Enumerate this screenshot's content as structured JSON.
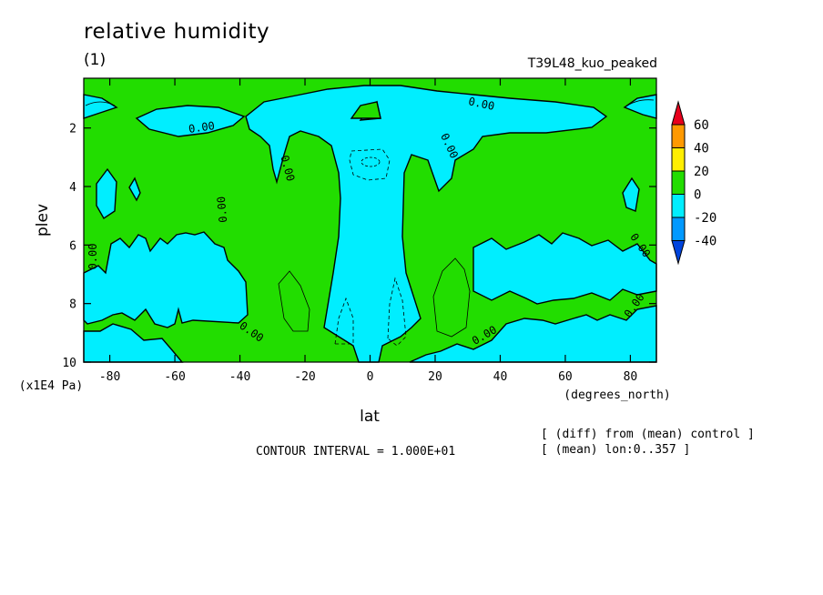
{
  "header": {
    "title": "relative humidity",
    "panel": "(1)",
    "run": "T39L48_kuo_peaked"
  },
  "footer": {
    "contour_interval": "CONTOUR INTERVAL = 1.000E+01",
    "diff_note": "[ (diff) from (mean) control ]",
    "mean_note": "[ (mean) lon:0..357 ]"
  },
  "chart_data": {
    "type": "heatmap",
    "xlabel": "lat",
    "xunits": "(degrees_north)",
    "ylabel": "plev",
    "yunits": "(x1E4 Pa)",
    "xlim": [
      -88,
      88
    ],
    "ylim": [
      10,
      0.3
    ],
    "xticks": [
      -80,
      -60,
      -40,
      -20,
      0,
      20,
      40,
      60,
      80
    ],
    "yticks": [
      2,
      4,
      6,
      8,
      10
    ],
    "contour_labels": [
      "0.00",
      "0.00",
      "0.00",
      "0.00",
      "0.00",
      "0.00",
      "0.00",
      "0.00",
      "0.00",
      "0.00"
    ],
    "colorbar": {
      "ticks": [
        60,
        40,
        20,
        0,
        -20,
        -40
      ],
      "colors": [
        "#e8001c",
        "#ff9900",
        "#ffee00",
        "#22dd00",
        "#00eeff",
        "#0099ff",
        "#0044dd"
      ]
    },
    "legend_position": "right"
  }
}
